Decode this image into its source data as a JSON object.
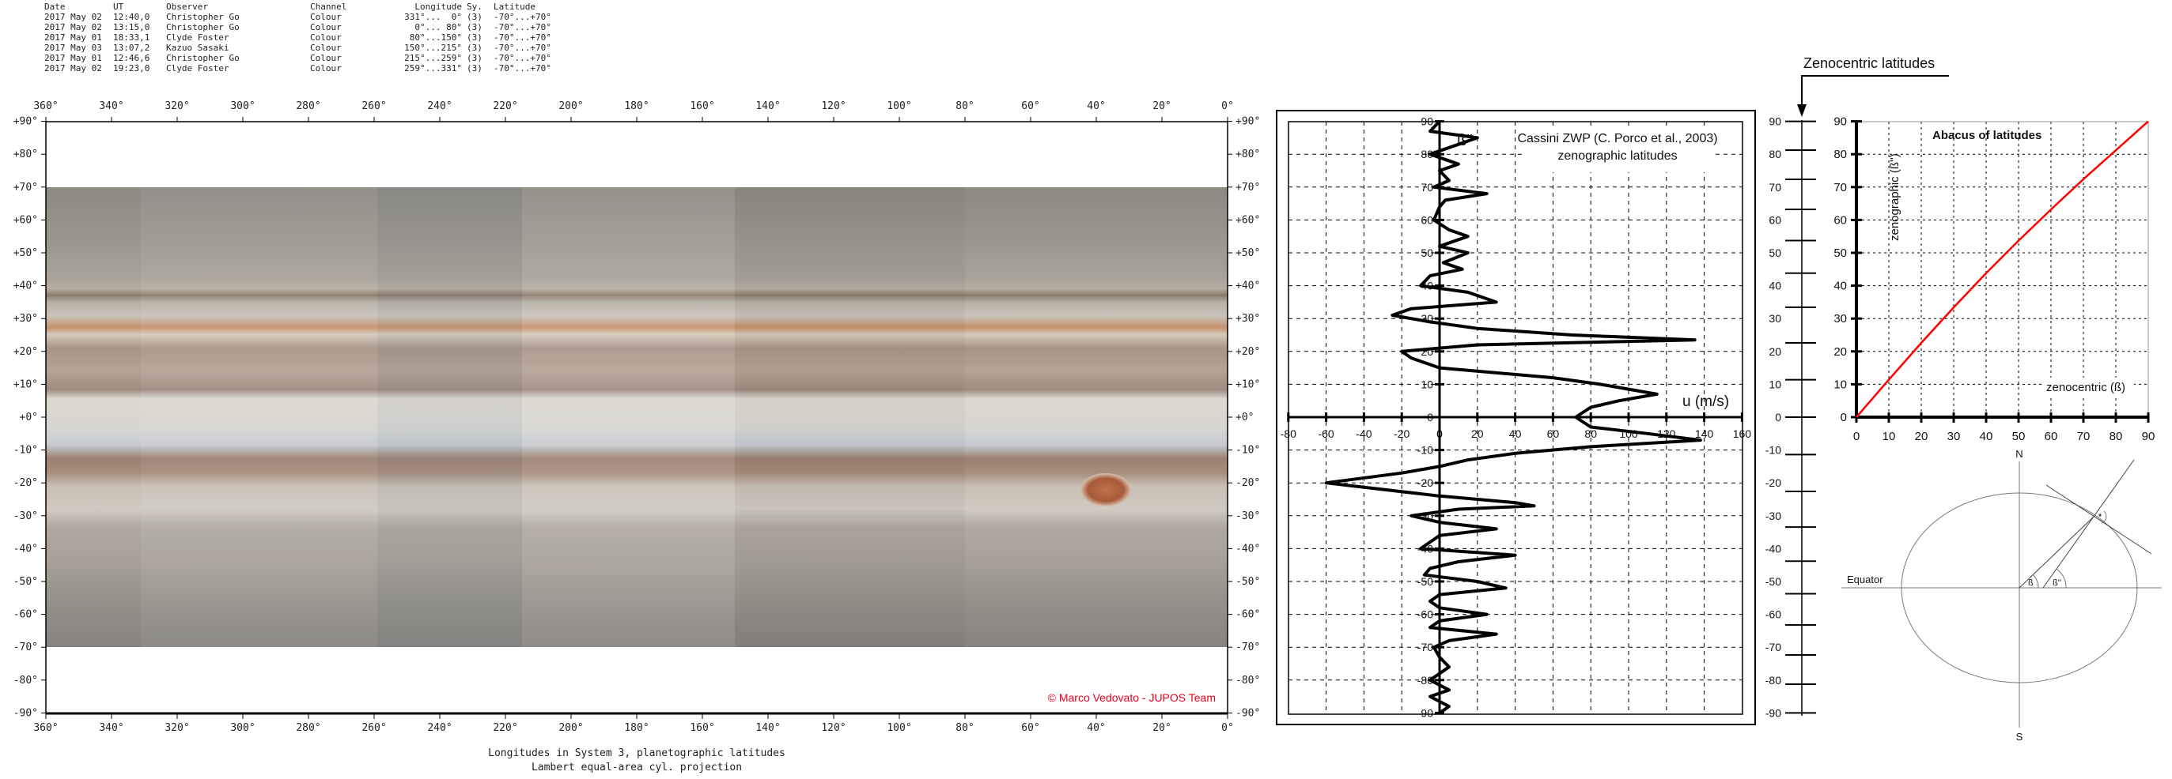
{
  "table": {
    "headers": [
      "Date",
      "UT",
      "Observer",
      "Channel",
      "Longitude",
      "Sy.",
      "Latitude"
    ],
    "rows": [
      [
        "2017 May 02",
        "12:40,0",
        "Christopher Go",
        "Colour",
        "331°...  0°",
        "(3)",
        "-70°...+70°"
      ],
      [
        "2017 May 02",
        "13:15,0",
        "Christopher Go",
        "Colour",
        "0°... 80°",
        "(3)",
        "-70°...+70°"
      ],
      [
        "2017 May 01",
        "18:33,1",
        "Clyde Foster",
        "Colour",
        "80°...150°",
        "(3)",
        "-70°...+70°"
      ],
      [
        "2017 May 03",
        "13:07,2",
        "Kazuo Sasaki",
        "Colour",
        "150°...215°",
        "(3)",
        "-70°...+70°"
      ],
      [
        "2017 May 01",
        "12:46,6",
        "Christopher Go",
        "Colour",
        "215°...259°",
        "(3)",
        "-70°...+70°"
      ],
      [
        "2017 May 02",
        "19:23,0",
        "Clyde Foster",
        "Colour",
        "259°...331°",
        "(3)",
        "-70°...+70°"
      ]
    ]
  },
  "map": {
    "lon_labels": [
      "360°",
      "340°",
      "320°",
      "300°",
      "280°",
      "260°",
      "240°",
      "220°",
      "200°",
      "180°",
      "160°",
      "140°",
      "120°",
      "100°",
      "80°",
      "60°",
      "40°",
      "20°",
      "0°"
    ],
    "lat_labels": [
      "+90°",
      "+80°",
      "+70°",
      "+60°",
      "+50°",
      "+40°",
      "+30°",
      "+20°",
      "+10°",
      "+0°",
      "-10°",
      "-20°",
      "-30°",
      "-40°",
      "-50°",
      "-60°",
      "-70°",
      "-80°",
      "-90°"
    ],
    "copyright": "© Marco Vedovato - JUPOS Team",
    "copyright_color": "#e8001c",
    "footer_line1": "Longitudes in System 3, planetographic latitudes",
    "footer_line2": "Lambert equal-area cyl. projection"
  },
  "chart_data": [
    {
      "type": "line",
      "title": "Cassini ZWP (C. Porco et al., 2003)",
      "subtitle": "zenographic latitudes",
      "xlabel": "u (m/s)",
      "ylabel": "ß''",
      "xlim": [
        -80,
        160
      ],
      "ylim": [
        -90,
        90
      ],
      "x_ticks": [
        "-80",
        "-60",
        "-40",
        "-20",
        "0",
        "20",
        "40",
        "60",
        "80",
        "100",
        "120",
        "140",
        "160"
      ],
      "y_ticks": [
        "90",
        "80",
        "70",
        "60",
        "50",
        "40",
        "30",
        "20",
        "10",
        "0",
        "-10",
        "-20",
        "-30",
        "-40",
        "-50",
        "-60",
        "-70",
        "-80",
        "-90"
      ],
      "grid": true,
      "series": [
        {
          "lat": [
            90,
            87,
            85,
            83,
            80,
            77,
            75,
            72,
            70,
            68,
            66,
            64,
            60,
            57,
            55,
            52,
            50,
            47,
            45,
            43,
            40,
            38,
            35,
            33,
            31,
            29,
            27,
            25,
            23.5,
            22,
            20,
            18,
            15,
            12,
            10,
            7,
            5,
            3,
            0,
            -3,
            -5,
            -7,
            -9,
            -11,
            -13,
            -15,
            -17,
            -20,
            -22,
            -24,
            -26,
            -27,
            -28,
            -30,
            -32,
            -34,
            -36,
            -38,
            -40,
            -42,
            -44,
            -46,
            -48,
            -50,
            -52,
            -54,
            -56,
            -58,
            -60,
            -62,
            -64,
            -66,
            -68,
            -70,
            -73,
            -76,
            -80,
            -83,
            -85,
            -88,
            -90
          ],
          "u": [
            0,
            -5,
            20,
            10,
            -5,
            10,
            0,
            5,
            -3,
            25,
            3,
            0,
            -3,
            5,
            15,
            0,
            15,
            2,
            12,
            -5,
            -10,
            15,
            30,
            -15,
            -25,
            -5,
            20,
            70,
            135,
            20,
            -20,
            -15,
            0,
            60,
            85,
            115,
            95,
            80,
            72,
            80,
            110,
            138,
            80,
            40,
            15,
            0,
            -20,
            -60,
            -30,
            0,
            40,
            50,
            10,
            -15,
            0,
            30,
            0,
            -5,
            -10,
            40,
            10,
            -5,
            -8,
            20,
            35,
            0,
            -5,
            0,
            25,
            0,
            -5,
            30,
            5,
            -3,
            0,
            5,
            -5,
            5,
            -5,
            5,
            0
          ]
        }
      ]
    },
    {
      "type": "line",
      "title": "Abacus of latitudes",
      "xlabel": "zenocentric (ß)",
      "ylabel": "zenographic (ß'')",
      "xlim": [
        0,
        90
      ],
      "ylim": [
        0,
        90
      ],
      "x_ticks": [
        "0",
        "10",
        "20",
        "30",
        "40",
        "50",
        "60",
        "70",
        "80",
        "90"
      ],
      "y_ticks": [
        "90",
        "80",
        "70",
        "60",
        "50",
        "40",
        "30",
        "20",
        "10",
        "0"
      ],
      "grid": true,
      "line_color": "#ff0000",
      "series": [
        {
          "x": [
            0,
            10,
            20,
            30,
            40,
            50,
            60,
            70,
            80,
            90
          ],
          "y": [
            0,
            11.4,
            22.6,
            33.4,
            43.8,
            53.7,
            63.2,
            72.4,
            81.2,
            90
          ]
        }
      ]
    }
  ],
  "zenocentric_axis": {
    "label": "Zenocentric latitudes",
    "ticks": [
      "90",
      "80",
      "70",
      "60",
      "50",
      "40",
      "30",
      "20",
      "10",
      "0",
      "-10",
      "-20",
      "-30",
      "-40",
      "-50",
      "-60",
      "-70",
      "-80",
      "-90"
    ]
  },
  "diagram": {
    "north": "N",
    "south": "S",
    "equator": "Equator",
    "beta": "ß",
    "beta2": "ß''"
  }
}
